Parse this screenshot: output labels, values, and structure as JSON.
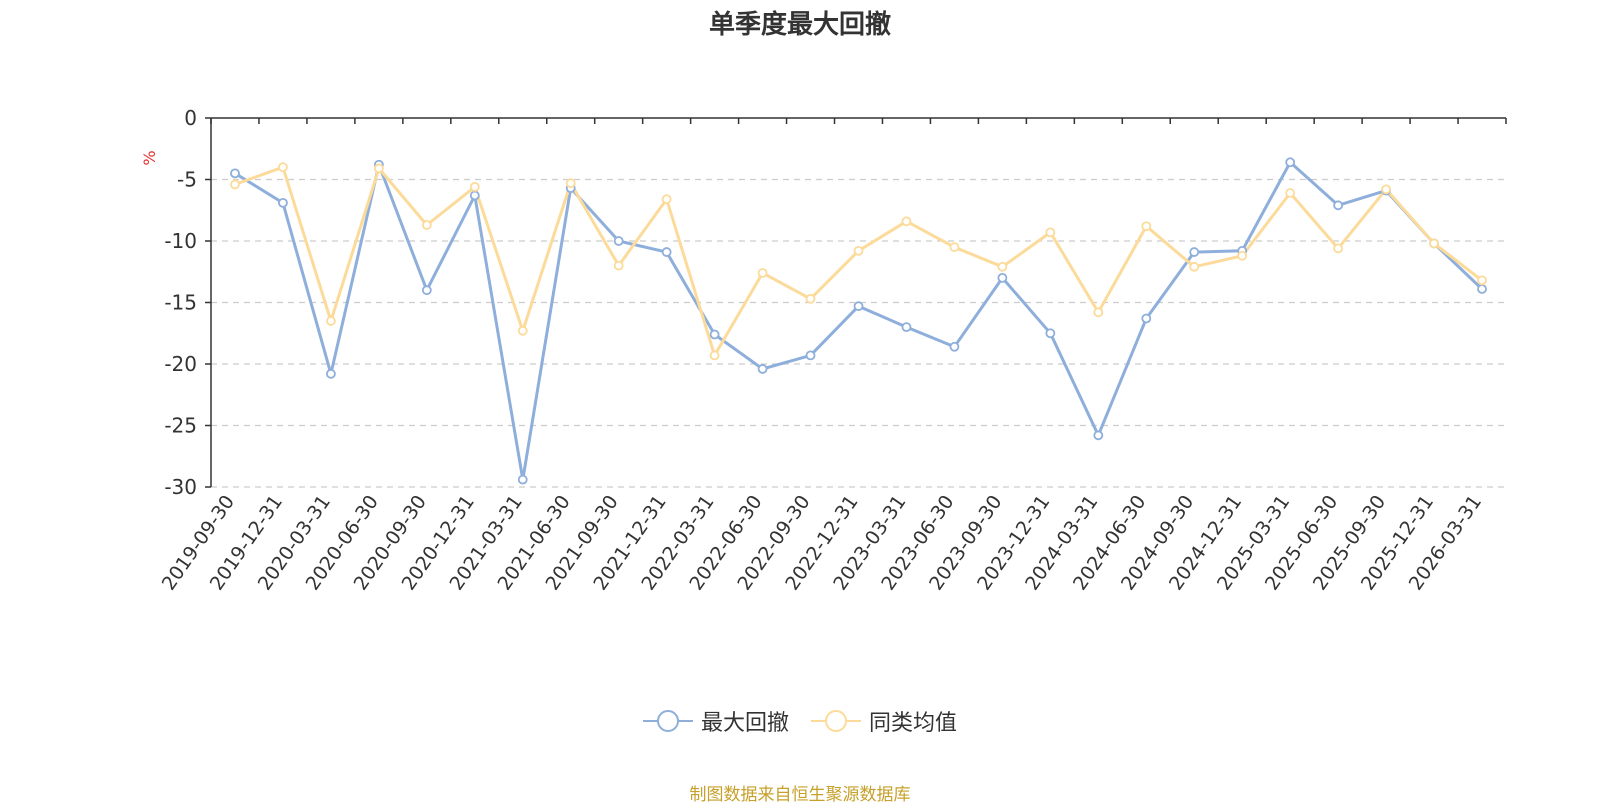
{
  "chart_data": {
    "type": "line",
    "title": "单季度最大回撤",
    "ylabel": "%",
    "ylim": [
      -30,
      0
    ],
    "yticks": [
      0,
      -5,
      -10,
      -15,
      -20,
      -25,
      -30
    ],
    "grid": true,
    "legend_position": "bottom",
    "x": [
      "2019-09-30",
      "2019-12-31",
      "2020-03-31",
      "2020-06-30",
      "2020-09-30",
      "2020-12-31",
      "2021-03-31",
      "2021-06-30",
      "2021-09-30",
      "2021-12-31",
      "2022-03-31",
      "2022-06-30",
      "2022-09-30",
      "2022-12-31",
      "2023-03-31",
      "2023-06-30",
      "2023-09-30",
      "2023-12-31",
      "2024-03-31",
      "2024-06-30",
      "2024-09-30",
      "2024-12-31",
      "2025-03-31",
      "2025-06-30",
      "2025-09-30",
      "2025-12-31",
      "2026-03-31"
    ],
    "series": [
      {
        "name": "最大回撤",
        "color": "#8eaedb",
        "values": [
          -4.5,
          -6.9,
          -20.8,
          -3.8,
          -14.0,
          -6.3,
          -29.4,
          -5.7,
          -10.0,
          -10.9,
          -17.6,
          -20.4,
          -19.3,
          -15.3,
          -17.0,
          -18.6,
          -13.0,
          -17.5,
          -25.8,
          -16.3,
          -10.9,
          -10.8,
          -3.6,
          -7.1,
          -5.9,
          -10.2,
          -13.9
        ]
      },
      {
        "name": "同类均值",
        "color": "#fcdb9a",
        "values": [
          -5.4,
          -4.0,
          -16.5,
          -4.1,
          -8.7,
          -5.6,
          -17.3,
          -5.3,
          -12.0,
          -6.6,
          -19.3,
          -12.6,
          -14.7,
          -10.8,
          -8.4,
          -10.5,
          -12.1,
          -9.3,
          -15.8,
          -8.8,
          -12.1,
          -11.2,
          -6.1,
          -10.6,
          -5.8,
          -10.2,
          -13.2
        ]
      }
    ],
    "source": "制图数据来自恒生聚源数据库",
    "ylabel_color": "#e0312f",
    "source_color": "#c7a02a"
  }
}
